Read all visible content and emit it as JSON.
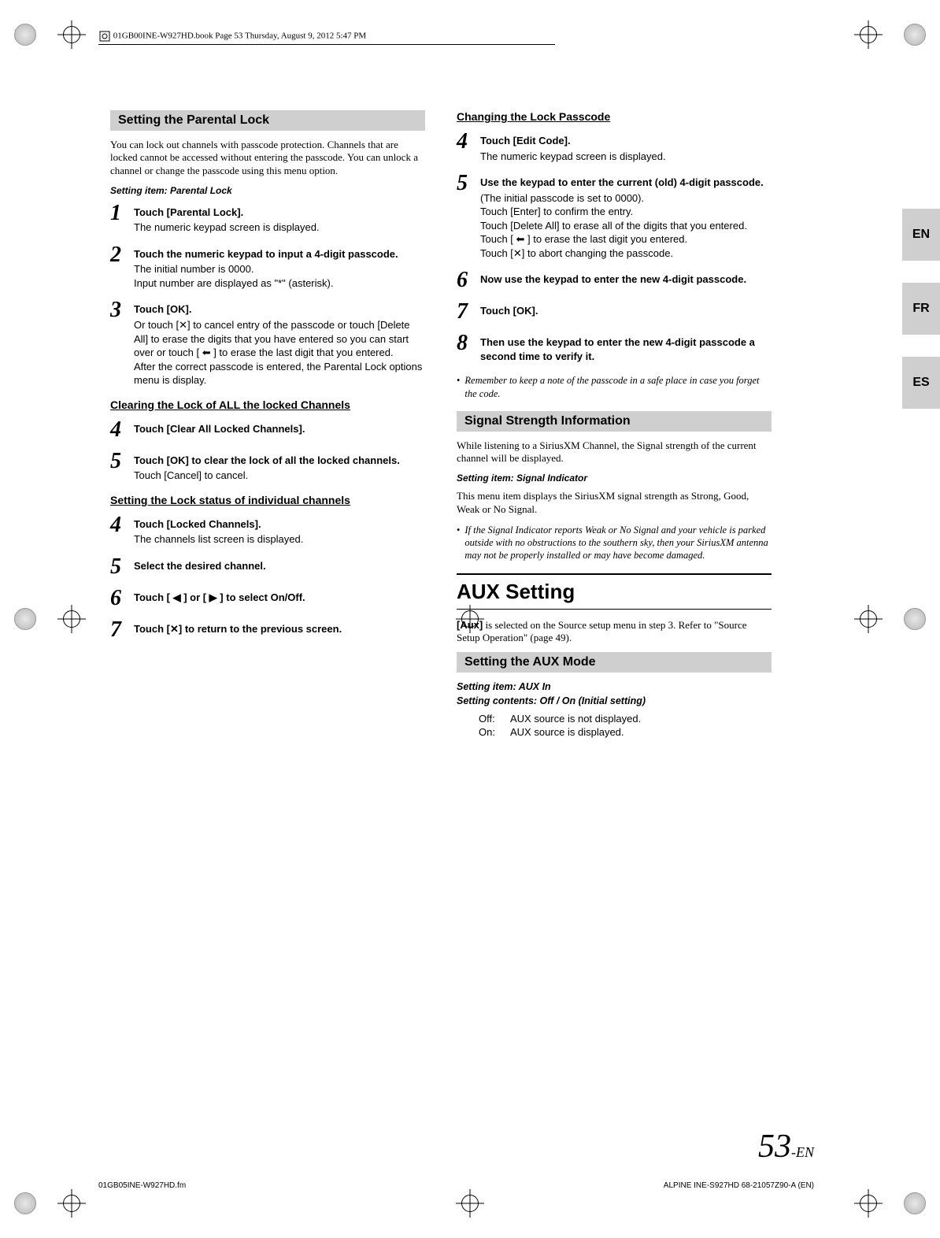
{
  "book_header": "01GB00INE-W927HD.book  Page 53  Thursday, August 9, 2012  5:47 PM",
  "lang_tabs": [
    "EN",
    "FR",
    "ES"
  ],
  "left": {
    "section_title": "Setting the Parental Lock",
    "intro_text": "You can lock out channels with passcode protection. Channels that are locked cannot be accessed without entering the passcode. You can unlock a channel or change the passcode using this menu option.",
    "setting_item": "Setting item: Parental Lock",
    "steps1": [
      {
        "n": "1",
        "title_pre": "Touch ",
        "title_bold": "[Parental Lock]",
        "title_post": ".",
        "desc": "The numeric keypad screen is displayed."
      },
      {
        "n": "2",
        "title_pre": "",
        "title_bold": "Touch the numeric keypad to input a 4-digit passcode.",
        "title_post": "",
        "desc": "The initial number is 0000.\nInput number are displayed as \"*\" (asterisk)."
      },
      {
        "n": "3",
        "title_pre": "Touch ",
        "title_bold": "[OK]",
        "title_post": ".",
        "desc": "Or touch [✕] to cancel entry of the passcode or touch [Delete All] to erase the digits that you have entered so you can start over or touch [ ⬅ ] to erase the last digit that you entered.\nAfter the correct passcode is entered, the Parental Lock options menu is display."
      }
    ],
    "subA": "Clearing the Lock of ALL the locked Channels",
    "stepsA": [
      {
        "n": "4",
        "title_pre": "Touch ",
        "title_bold": "[Clear All Locked Channels]",
        "title_post": ".",
        "desc": ""
      },
      {
        "n": "5",
        "title_pre": "Touch ",
        "title_bold": "[OK]",
        "title_post": " to clear the lock of all the locked channels.",
        "desc": "Touch [Cancel] to cancel."
      }
    ],
    "subB": "Setting the Lock status of individual channels",
    "stepsB": [
      {
        "n": "4",
        "title_pre": "Touch ",
        "title_bold": "[Locked Channels]",
        "title_post": ".",
        "desc": "The channels list screen is displayed."
      },
      {
        "n": "5",
        "title_pre": "",
        "title_bold": "Select the desired channel.",
        "title_post": "",
        "desc": ""
      },
      {
        "n": "6",
        "title_pre": "Touch ",
        "title_bold": "[ ◀ ] or [ ▶ ]",
        "title_post": " to select On/Off.",
        "desc": ""
      },
      {
        "n": "7",
        "title_pre": "Touch ",
        "title_bold": "[✕]",
        "title_post": " to return to the previous screen.",
        "desc": ""
      }
    ]
  },
  "right": {
    "subC": "Changing the Lock Passcode",
    "stepsC": [
      {
        "n": "4",
        "title_pre": "Touch ",
        "title_bold": "[Edit Code]",
        "title_post": ".",
        "desc": "The numeric keypad screen is displayed."
      },
      {
        "n": "5",
        "title_pre": "",
        "title_bold": "Use the keypad to enter the current (old) 4-digit passcode.",
        "title_post": "",
        "desc": " (The initial passcode is set to 0000).\nTouch [Enter] to confirm the entry.\nTouch [Delete All] to erase all of the digits that you entered.\nTouch [ ⬅ ] to erase the last digit you entered.\nTouch [✕] to abort changing the passcode."
      },
      {
        "n": "6",
        "title_pre": "",
        "title_bold": "Now use the keypad to enter the new 4-digit passcode.",
        "title_post": "",
        "desc": ""
      },
      {
        "n": "7",
        "title_pre": "Touch ",
        "title_bold": "[OK]",
        "title_post": ".",
        "desc": ""
      },
      {
        "n": "8",
        "title_pre": "",
        "title_bold": "Then use the keypad to enter the new 4-digit passcode a second time to verify it.",
        "title_post": "",
        "desc": ""
      }
    ],
    "note1": "Remember to keep a note of the passcode in a safe place in case you forget the code.",
    "section2_title": "Signal Strength Information",
    "section2_intro": "While listening to a SiriusXM Channel, the Signal strength of the current channel will be displayed.",
    "section2_item": "Setting item: Signal Indicator",
    "section2_desc": "This menu item displays the SiriusXM signal strength as Strong, Good, Weak or No Signal.",
    "note2": "If the Signal Indicator reports Weak or No Signal and your vehicle is parked outside with no obstructions to the southern sky, then your SiriusXM antenna may not be properly installed or may have become damaged.",
    "big_head": "AUX Setting",
    "aux_intro": "[Aux] is selected on the Source setup menu in step 3. Refer to \"Source Setup Operation\" (page 49).",
    "section3_title": "Setting the AUX Mode",
    "section3_item1": "Setting item: AUX In",
    "section3_item2": "Setting contents: Off / On (Initial setting)",
    "off_label": "Off:",
    "off_text": "AUX source is not displayed.",
    "on_label": "On:",
    "on_text": "AUX source is displayed."
  },
  "page_number": "53",
  "page_suffix": "-EN",
  "footer_left": "01GB05INE-W927HD.fm",
  "footer_right": "ALPINE INE-S927HD 68-21057Z90-A (EN)"
}
